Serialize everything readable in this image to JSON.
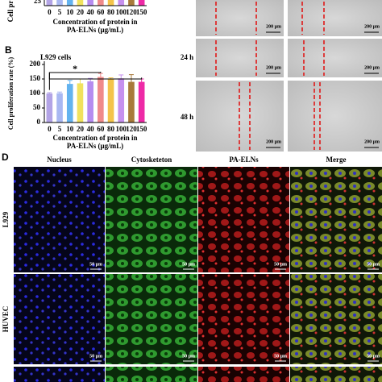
{
  "chart_data": [
    {
      "type": "bar",
      "y_label": "Cell pr",
      "ylim_top_tick": 25,
      "categories": [
        "0",
        "5",
        "10",
        "20",
        "40",
        "60",
        "80",
        "100",
        "120",
        "150"
      ],
      "x_label": [
        "Concentration of protein in",
        "PA-ELNs (μg/mL)"
      ]
    },
    {
      "type": "bar",
      "panel": "B",
      "title": "L929 cells",
      "y_label": "Cell proliferation rate (%)",
      "x_label": [
        "Concentration of protein in",
        "PA-ELNs (μg/mL)"
      ],
      "categories": [
        "0",
        "5",
        "10",
        "20",
        "40",
        "60",
        "80",
        "100",
        "120",
        "150"
      ],
      "values": [
        100,
        101,
        133,
        135,
        142,
        157,
        149,
        152,
        140,
        140
      ],
      "errors": [
        3,
        4,
        12,
        15,
        10,
        12,
        5,
        12,
        25,
        10
      ],
      "colors": [
        "#b3a4e6",
        "#a9b8f2",
        "#63b3ef",
        "#f1e25e",
        "#b68cf0",
        "#f08a8a",
        "#f4c44a",
        "#c690ef",
        "#a87a3a",
        "#ee2aa6"
      ],
      "ylim": [
        0,
        200
      ],
      "yticks": [
        0,
        50,
        100,
        150,
        200
      ],
      "annotation": "*"
    }
  ],
  "wound": {
    "rows": [
      "24 h",
      "48 h"
    ],
    "scale": "200 μm"
  },
  "panel_d": {
    "panel": "D",
    "columns": [
      "Nucleus",
      "Cytosketeton",
      "PA-ELNs",
      "Merge"
    ],
    "rows": [
      "L929",
      "HUVEC"
    ],
    "scale": "50 μm"
  }
}
